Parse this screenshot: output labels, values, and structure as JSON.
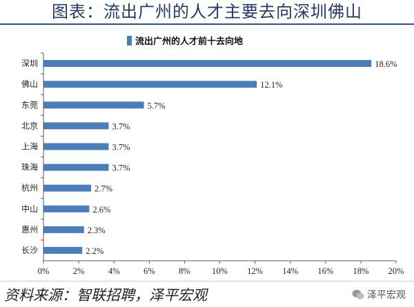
{
  "page_title": "图表：流出广州的人才主要去向深圳佛山",
  "source": "资料来源：智联招聘，泽平宏观",
  "brand": "泽平宏观",
  "colors": {
    "bar": "#4a7ebb",
    "bar_dark": "#2f5f9a",
    "title": "#1f3a6b"
  },
  "chart_data": {
    "type": "bar",
    "orientation": "horizontal",
    "categories": [
      "深圳",
      "佛山",
      "东莞",
      "北京",
      "上海",
      "珠海",
      "杭州",
      "中山",
      "惠州",
      "长沙"
    ],
    "series": [
      {
        "name": "流出广州的人才前十去向地",
        "values": [
          18.6,
          12.1,
          5.7,
          3.7,
          3.7,
          3.7,
          2.7,
          2.6,
          2.3,
          2.2
        ]
      }
    ],
    "value_labels": [
      "18.6%",
      "12.1%",
      "5.7%",
      "3.7%",
      "3.7%",
      "3.7%",
      "2.7%",
      "2.6%",
      "2.3%",
      "2.2%"
    ],
    "xlim": [
      0,
      20
    ],
    "xticks": [
      0,
      2,
      4,
      6,
      8,
      10,
      12,
      14,
      16,
      18,
      20
    ],
    "xtick_labels": [
      "0%",
      "2%",
      "4%",
      "6%",
      "8%",
      "10%",
      "12%",
      "14%",
      "16%",
      "18%",
      "20%"
    ],
    "legend_position": "top-center",
    "grid": false
  }
}
